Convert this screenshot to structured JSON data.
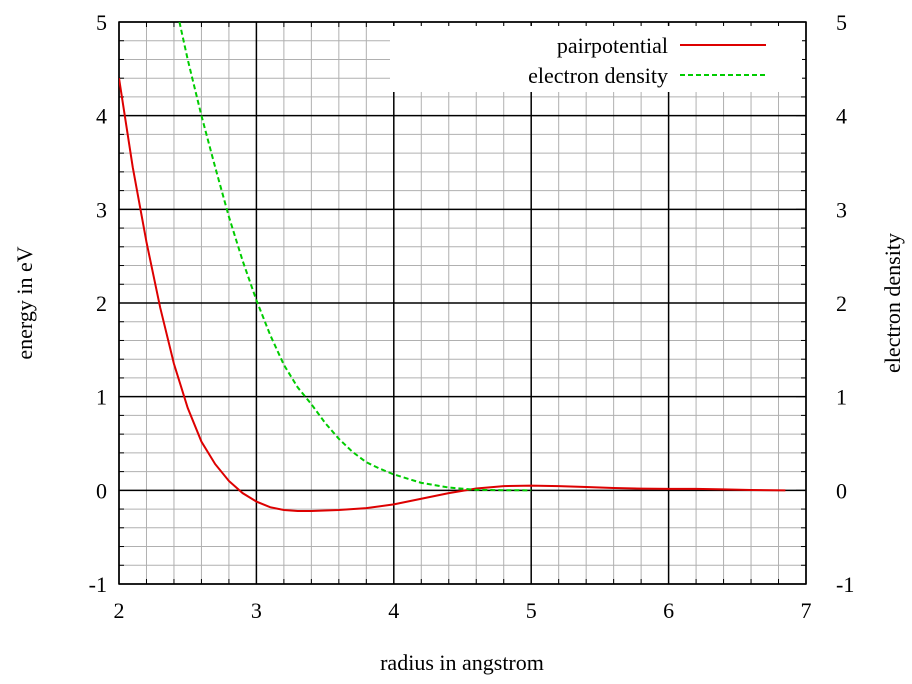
{
  "chart_data": {
    "type": "line",
    "xlabel": "radius in angstrom",
    "ylabel": "energy in eV",
    "y2label": "electron density",
    "xlim": [
      2,
      7
    ],
    "xticks": [
      2,
      3,
      4,
      5,
      6,
      7
    ],
    "ylim": [
      -1,
      5
    ],
    "yticks": [
      -1,
      0,
      1,
      2,
      3,
      4,
      5
    ],
    "y2lim": [
      -1,
      5
    ],
    "y2ticks": [
      -1,
      0,
      1,
      2,
      3,
      4,
      5
    ],
    "grid": true,
    "legend": "upper right",
    "series": [
      {
        "name": "pairpotential",
        "color": "#dd0000",
        "dash": false,
        "x": [
          2.0,
          2.1,
          2.2,
          2.3,
          2.4,
          2.5,
          2.6,
          2.7,
          2.8,
          2.9,
          3.0,
          3.1,
          3.2,
          3.3,
          3.4,
          3.6,
          3.8,
          4.0,
          4.2,
          4.4,
          4.6,
          4.8,
          5.0,
          5.2,
          5.4,
          5.6,
          5.8,
          6.0,
          6.2,
          6.4,
          6.6,
          6.85
        ],
        "values": [
          4.4,
          3.45,
          2.65,
          1.95,
          1.35,
          0.88,
          0.52,
          0.28,
          0.1,
          -0.03,
          -0.12,
          -0.18,
          -0.21,
          -0.22,
          -0.22,
          -0.21,
          -0.19,
          -0.15,
          -0.09,
          -0.03,
          0.02,
          0.045,
          0.05,
          0.045,
          0.035,
          0.025,
          0.018,
          0.015,
          0.015,
          0.01,
          0.003,
          0
        ]
      },
      {
        "name": "electron density",
        "color": "#00cc00",
        "dash": true,
        "axis": "y2",
        "x": [
          2.44,
          2.5,
          2.6,
          2.7,
          2.8,
          2.9,
          3.0,
          3.1,
          3.2,
          3.3,
          3.4,
          3.5,
          3.6,
          3.7,
          3.8,
          3.9,
          4.0,
          4.2,
          4.4,
          4.6,
          4.8,
          5.0
        ],
        "values": [
          5.0,
          4.6,
          4.0,
          3.45,
          2.92,
          2.45,
          2.03,
          1.66,
          1.34,
          1.1,
          0.92,
          0.72,
          0.55,
          0.41,
          0.3,
          0.23,
          0.17,
          0.08,
          0.03,
          0.005,
          0.001,
          0
        ]
      }
    ]
  }
}
